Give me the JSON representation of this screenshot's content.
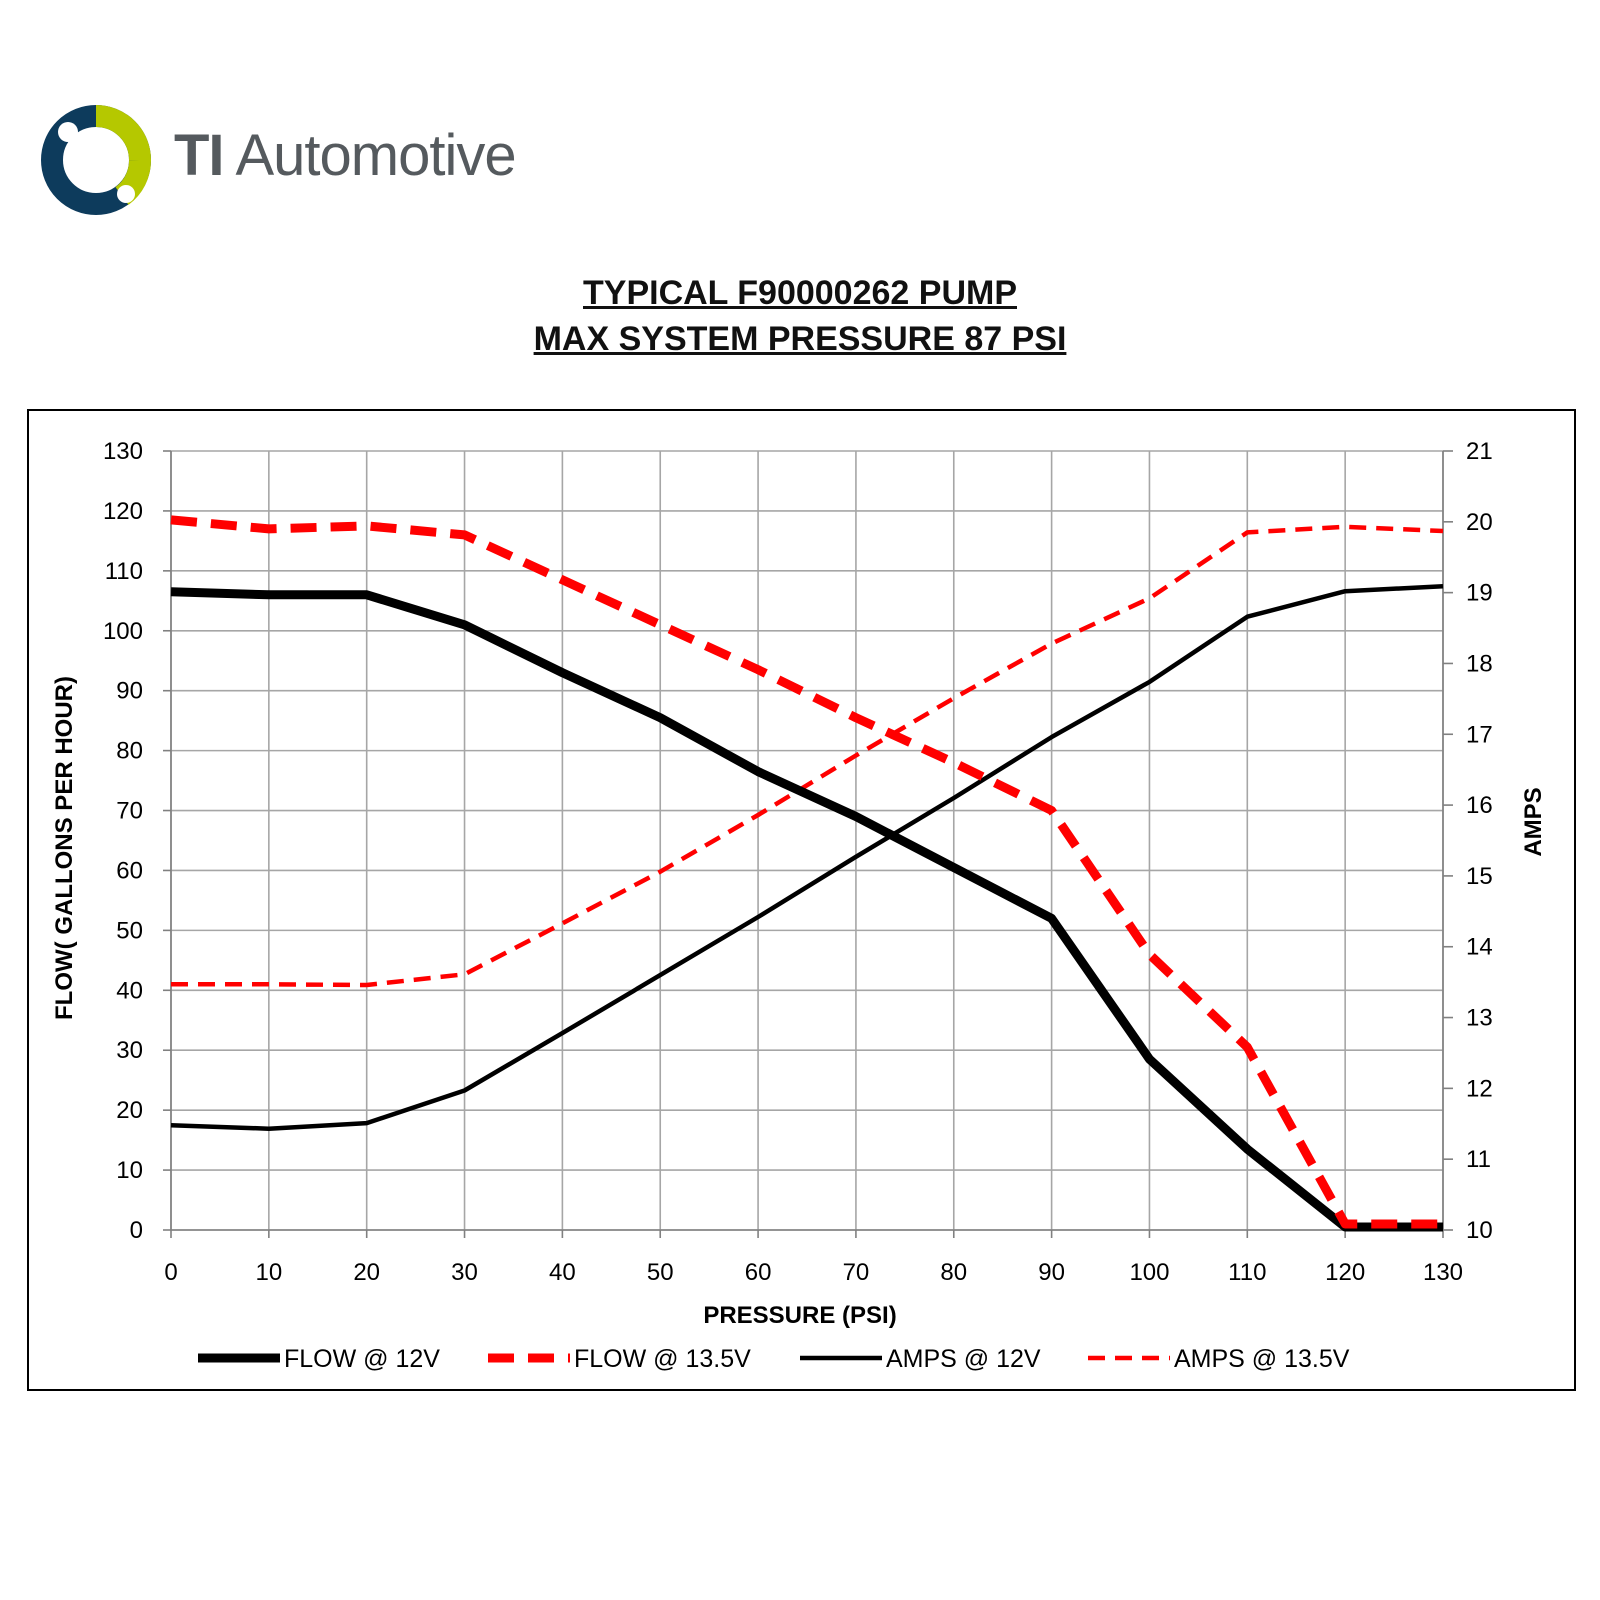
{
  "brand": {
    "name_bold": "TI",
    "name_rest": " Automotive"
  },
  "colors": {
    "black": "#000000",
    "red": "#ff0000",
    "grid": "#a6a6a6",
    "logo_green": "#b5c800",
    "logo_navy": "#0d3b5c"
  },
  "chart_data": {
    "type": "line",
    "title": "TYPICAL F90000262 PUMP",
    "subtitle": "MAX SYSTEM PRESSURE 87 PSI",
    "xlabel": "PRESSURE (PSI)",
    "ylabel": "FLOW( GALLONS PER HOUR)",
    "y2label": "AMPS",
    "xlim": [
      0,
      130
    ],
    "ylim": [
      0,
      130
    ],
    "y2lim": [
      10,
      21
    ],
    "xticks": [
      0,
      10,
      20,
      30,
      40,
      50,
      60,
      70,
      80,
      90,
      100,
      110,
      120,
      130
    ],
    "yticks": [
      0,
      10,
      20,
      30,
      40,
      50,
      60,
      70,
      80,
      90,
      100,
      110,
      120,
      130
    ],
    "y2ticks": [
      10,
      11,
      12,
      13,
      14,
      15,
      16,
      17,
      18,
      19,
      20,
      21
    ],
    "grid": true,
    "legend_position": "bottom",
    "x": [
      0,
      10,
      20,
      30,
      40,
      50,
      60,
      70,
      80,
      90,
      100,
      110,
      120,
      130
    ],
    "series": [
      {
        "name": "FLOW @ 12V",
        "axis": "left",
        "style": "solid-thick",
        "color": "#000000",
        "values": [
          106.5,
          106,
          106,
          101,
          93,
          85.5,
          76.5,
          69,
          60.5,
          52,
          28.5,
          13.5,
          0.5,
          0.5
        ]
      },
      {
        "name": "FLOW @ 13.5V",
        "axis": "left",
        "style": "dashed-thick",
        "color": "#ff0000",
        "values": [
          118.5,
          117,
          117.5,
          116,
          108.5,
          101,
          93.5,
          85.5,
          78,
          70,
          46,
          30.5,
          1,
          1
        ]
      },
      {
        "name": "AMPS @ 12V",
        "axis": "right",
        "style": "solid-thin",
        "color": "#000000",
        "values": [
          11.48,
          11.43,
          11.51,
          11.97,
          12.78,
          13.6,
          14.42,
          15.27,
          16.1,
          16.96,
          17.74,
          18.66,
          19.02,
          19.09
        ]
      },
      {
        "name": "AMPS @ 13.5V",
        "axis": "right",
        "style": "dashed-thin",
        "color": "#ff0000",
        "values": [
          13.47,
          13.47,
          13.46,
          13.61,
          14.33,
          15.06,
          15.86,
          16.7,
          17.51,
          18.28,
          18.92,
          19.85,
          19.93,
          19.87
        ]
      }
    ]
  }
}
